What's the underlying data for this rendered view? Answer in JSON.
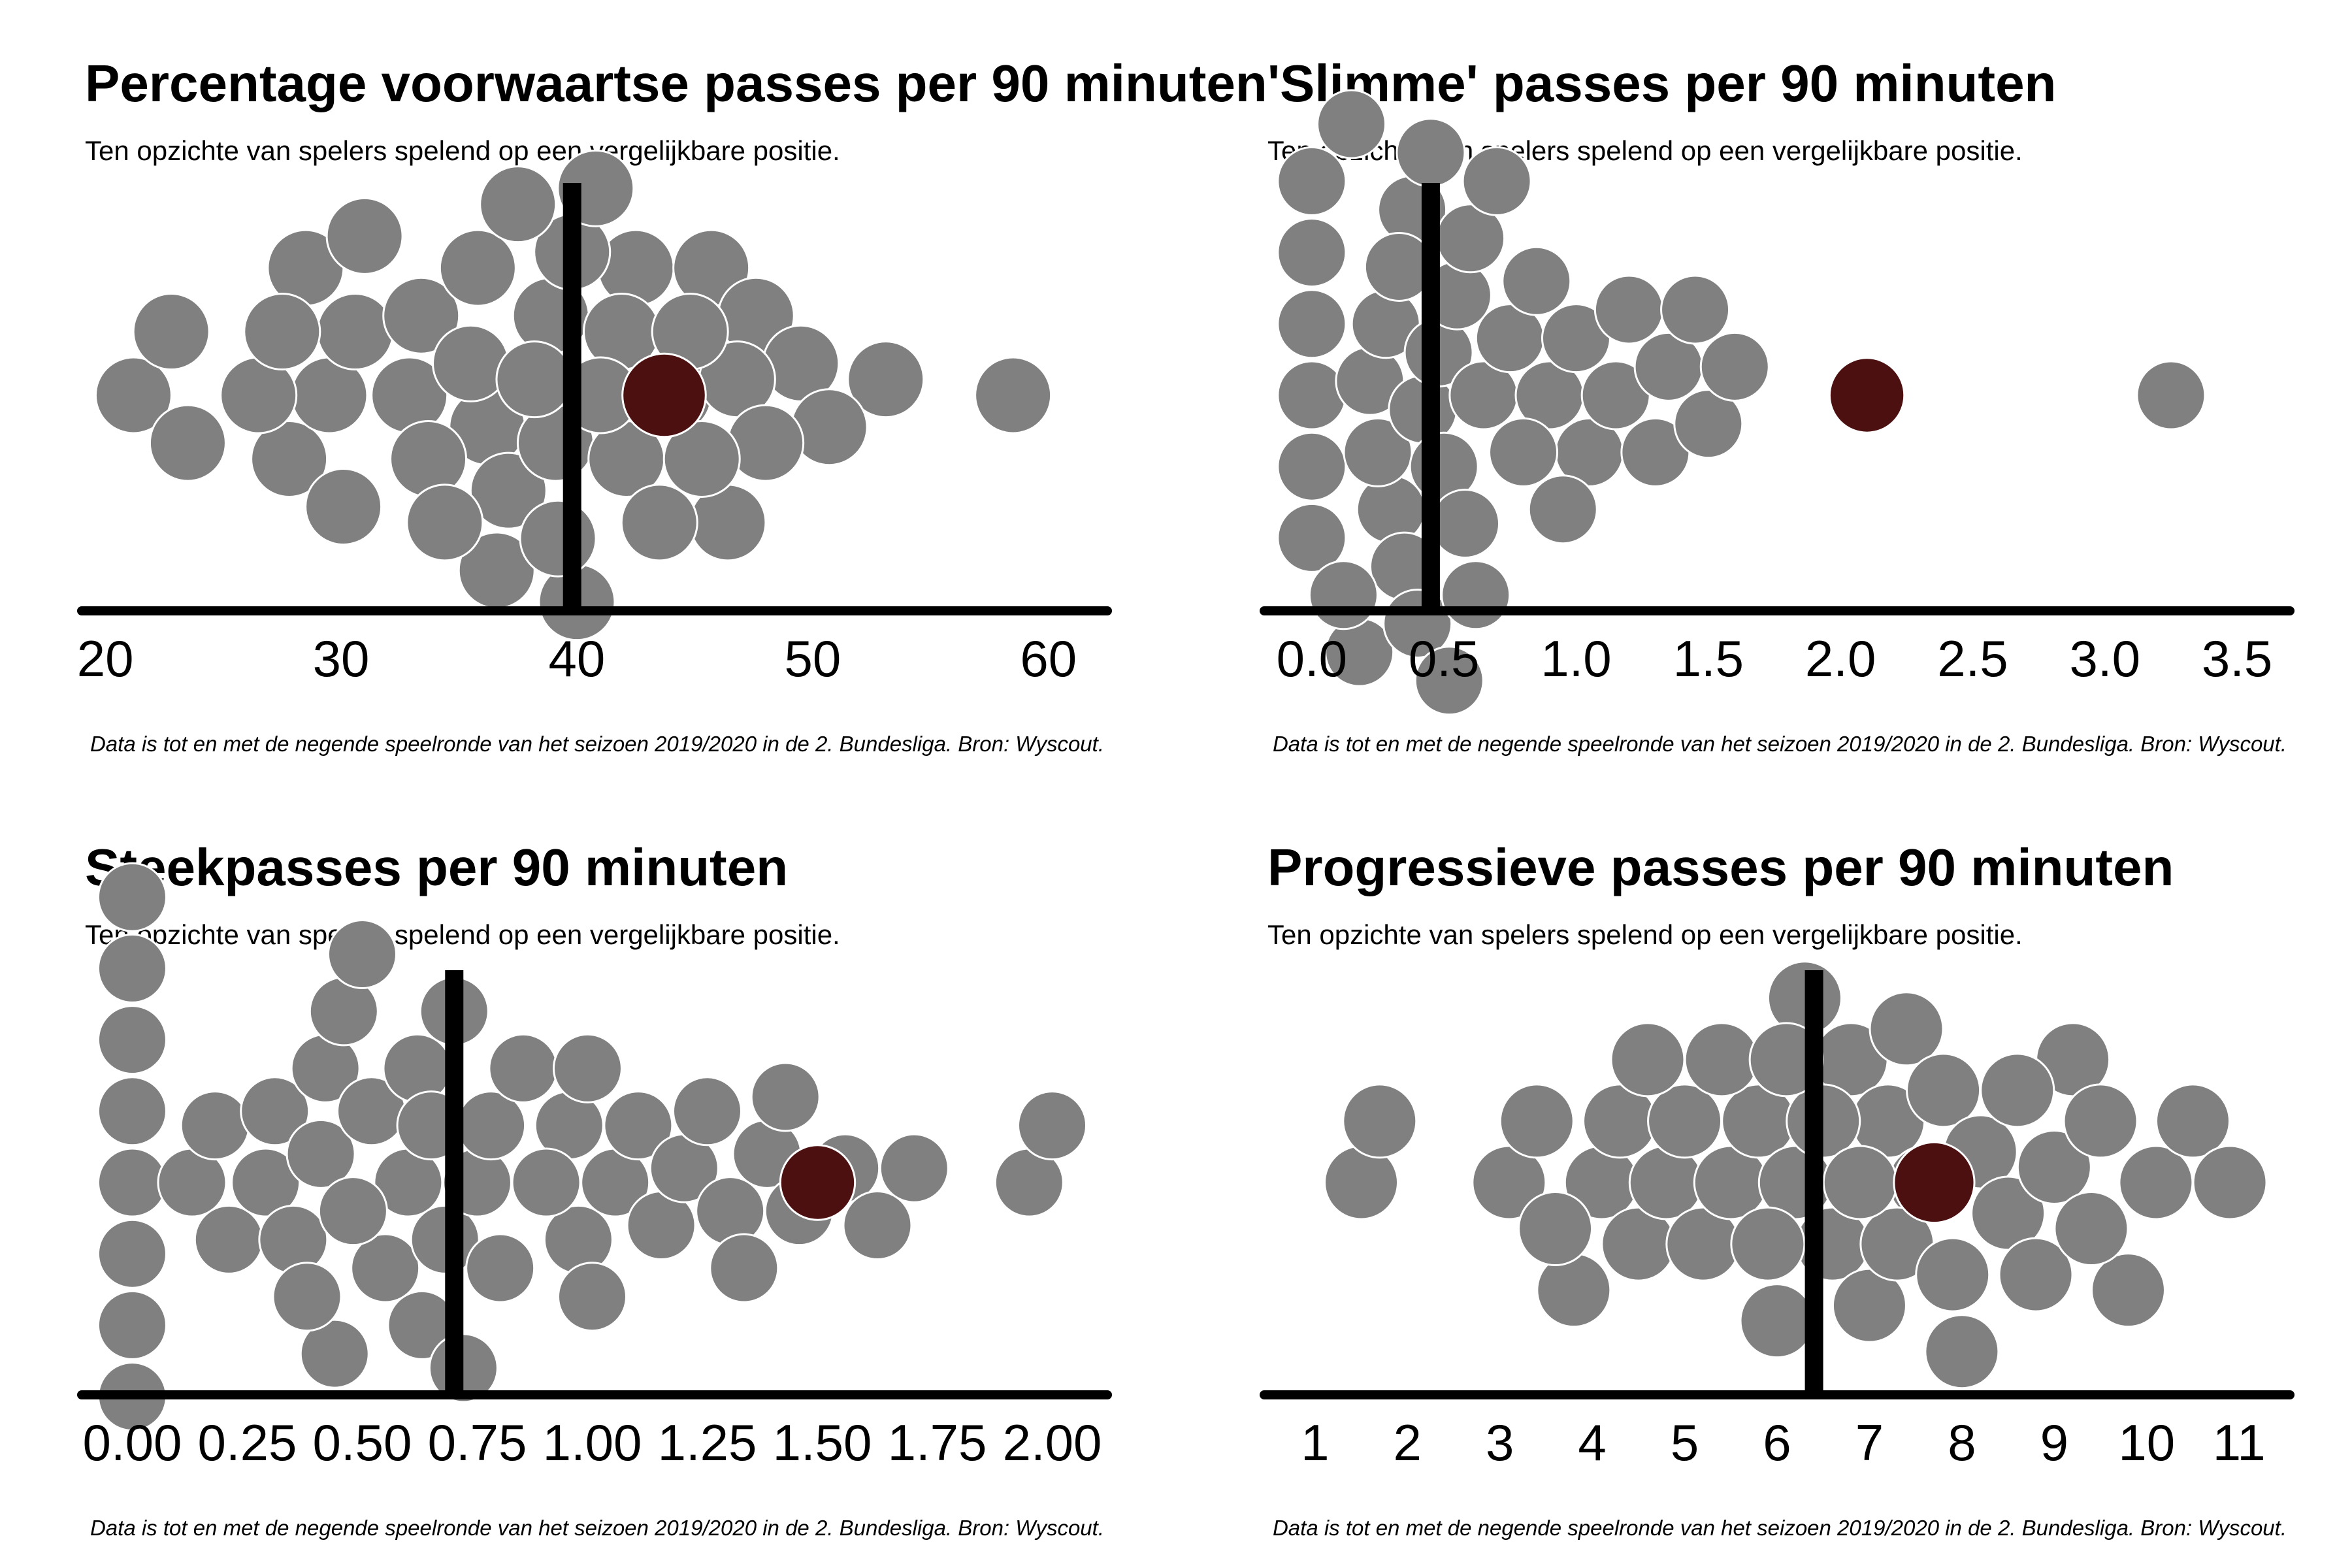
{
  "colors": {
    "dot": "#808080",
    "dot_stroke": "#ffffff",
    "highlight": "#4d1010",
    "axis": "#000000"
  },
  "chart_data": [
    {
      "type": "scatter",
      "title": "Percentage voorwaartse passes per 90 minuten",
      "subtitle": "Ten opzichte van spelers spelend op een vergelijkbare positie.",
      "caption": "Data is tot en met de negende speelronde van het seizoen 2019/2020 in de 2. Bundesliga. Bron: Wyscout.",
      "xlim": [
        19,
        62.5
      ],
      "ticks": [
        20,
        30,
        40,
        50,
        60
      ],
      "tick_labels": [
        "20",
        "30",
        "40",
        "50",
        "60"
      ],
      "reference_line": 39.8,
      "highlight": 43.7,
      "values": [
        21.2,
        23.5,
        22.8,
        27.8,
        29.5,
        26.5,
        28.5,
        30.6,
        31.0,
        33.4,
        32.9,
        35.8,
        36.2,
        37.1,
        38.9,
        40.0,
        39.1,
        42.5,
        41.9,
        45.7,
        44.1,
        47.6,
        49.5,
        46.4,
        53.1,
        58.5,
        50.7,
        33.7,
        36.6,
        39.2,
        42.1,
        46.8,
        48.0,
        39.8,
        37.5,
        35.5,
        43.5,
        41.0,
        45.3,
        44.8,
        38.2,
        40.8,
        30.1,
        27.5,
        34.4
      ]
    },
    {
      "type": "scatter",
      "title": "'Slimme' passes per 90 minuten",
      "subtitle": "Ten opzichte van spelers spelend op een vergelijkbare positie.",
      "caption": "Data is tot en met de negende speelronde van het seizoen 2019/2020 in de 2. Bundesliga. Bron: Wyscout.",
      "xlim": [
        -0.18,
        3.7
      ],
      "ticks": [
        0,
        0.5,
        1,
        1.5,
        2,
        2.5,
        3,
        3.5
      ],
      "tick_labels": [
        "0.0",
        "0.5",
        "1.0",
        "1.5",
        "2.0",
        "2.5",
        "3.0",
        "3.5"
      ],
      "reference_line": 0.45,
      "highlight": 2.1,
      "values": [
        0.0,
        0.0,
        0.0,
        0.0,
        0.0,
        0.0,
        0.18,
        0.15,
        0.22,
        0.3,
        0.35,
        0.38,
        0.25,
        0.28,
        0.4,
        0.42,
        0.48,
        0.5,
        0.55,
        0.6,
        0.65,
        0.45,
        0.52,
        0.58,
        0.7,
        0.75,
        0.85,
        0.9,
        1.0,
        1.05,
        1.15,
        1.2,
        1.3,
        1.35,
        1.45,
        1.5,
        1.6,
        0.8,
        0.95,
        3.25,
        0.33,
        0.12,
        0.62,
        2.1
      ]
    },
    {
      "type": "scatter",
      "title": "Steekpasses per 90 minuten",
      "subtitle": "Ten opzichte van spelers spelend op een vergelijkbare positie.",
      "caption": "Data is tot en met de negende speelronde van het seizoen 2019/2020 in de 2. Bundesliga. Bron: Wyscout.",
      "xlim": [
        -0.11,
        2.12
      ],
      "ticks": [
        0,
        0.25,
        0.5,
        0.75,
        1,
        1.25,
        1.5,
        1.75,
        2
      ],
      "tick_labels": [
        "0.00",
        "0.25",
        "0.50",
        "0.75",
        "1.00",
        "1.25",
        "1.50",
        "1.75",
        "2.00"
      ],
      "reference_line": 0.7,
      "highlight": 1.49,
      "values": [
        0.0,
        0.0,
        0.0,
        0.0,
        0.0,
        0.0,
        0.0,
        0.0,
        0.13,
        0.21,
        0.18,
        0.29,
        0.31,
        0.35,
        0.41,
        0.42,
        0.44,
        0.46,
        0.5,
        0.52,
        0.55,
        0.6,
        0.62,
        0.63,
        0.65,
        0.68,
        0.7,
        0.72,
        0.75,
        0.78,
        0.8,
        0.85,
        0.95,
        0.97,
        0.99,
        1.0,
        1.05,
        1.1,
        1.15,
        1.2,
        1.25,
        1.3,
        1.33,
        1.38,
        1.45,
        1.55,
        1.62,
        1.7,
        1.95,
        2.0,
        0.38,
        0.48,
        0.9,
        1.42
      ]
    },
    {
      "type": "scatter",
      "title": "Progressieve passes per 90 minuten",
      "subtitle": "Ten opzichte van spelers spelend op een vergelijkbare positie.",
      "caption": "Data is tot en met de negende speelronde van het seizoen 2019/2020 in de 2. Bundesliga. Bron: Wyscout.",
      "xlim": [
        0.45,
        11.55
      ],
      "ticks": [
        1,
        2,
        3,
        4,
        5,
        6,
        7,
        8,
        9,
        10,
        11
      ],
      "tick_labels": [
        "1",
        "2",
        "3",
        "4",
        "5",
        "6",
        "7",
        "8",
        "9",
        "10",
        "11"
      ],
      "reference_line": 6.4,
      "highlight": 7.7,
      "values": [
        1.5,
        1.7,
        3.1,
        3.4,
        3.8,
        4.1,
        4.3,
        4.5,
        4.8,
        5.0,
        5.2,
        5.5,
        5.8,
        6.0,
        6.2,
        6.3,
        6.6,
        6.8,
        7.0,
        7.2,
        7.4,
        7.6,
        7.8,
        8.0,
        8.2,
        8.5,
        8.8,
        9.0,
        9.2,
        9.5,
        9.8,
        10.1,
        10.5,
        10.9,
        4.6,
        5.4,
        6.5,
        7.3,
        8.6,
        9.4,
        5.9,
        6.9,
        7.9,
        3.6,
        6.1
      ]
    }
  ]
}
